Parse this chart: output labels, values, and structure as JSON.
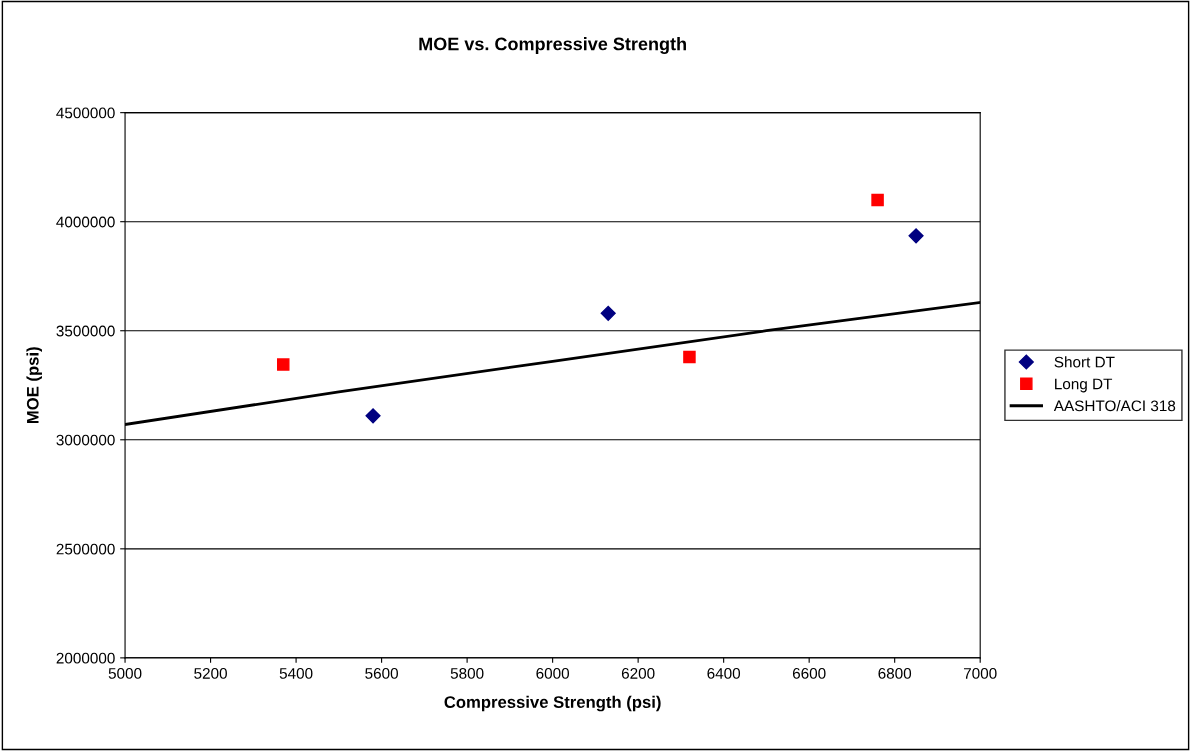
{
  "chart_data": {
    "type": "scatter",
    "title": "MOE vs. Compressive Strength",
    "xlabel": "Compressive Strength (psi)",
    "ylabel": "MOE (psi)",
    "series": [
      {
        "name": "Short DT",
        "color": "#000080",
        "marker": "diamond",
        "x": [
          5580,
          6130,
          6850
        ],
        "values": [
          3110000,
          3580000,
          3935000
        ]
      },
      {
        "name": "Long DT",
        "color": "#ff0000",
        "marker": "square",
        "x": [
          5370,
          6320,
          6760
        ],
        "values": [
          3345000,
          3380000,
          4100000
        ]
      },
      {
        "name": "AASHTO/ACI 318",
        "type": "line",
        "color": "#000000",
        "marker": "none",
        "line_style": "solid",
        "x": [
          5000,
          5500,
          6000,
          6500,
          7000
        ],
        "values": [
          3070000,
          3220000,
          3360000,
          3500000,
          3630000
        ]
      }
    ],
    "xlim": [
      5000,
      7000
    ],
    "xticks": [
      5000,
      5200,
      5400,
      5600,
      5800,
      6000,
      6200,
      6400,
      6600,
      6800,
      7000
    ],
    "ylim": [
      2000000,
      4500000
    ],
    "yticks": [
      2000000,
      2500000,
      3000000,
      3500000,
      4000000,
      4500000
    ],
    "grid": "y",
    "legend": "right"
  }
}
